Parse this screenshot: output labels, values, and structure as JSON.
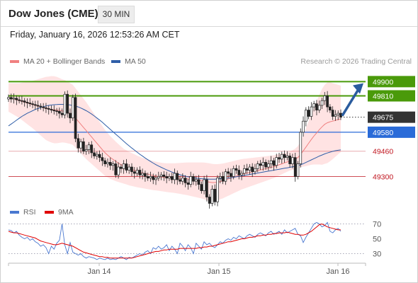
{
  "header": {
    "title": "Dow Jones (CME)",
    "timeframe": "30 MIN"
  },
  "datetime": "Friday, January 16, 2026 12:53:26 AM CET",
  "credit": "Research © 2026 Trading Central",
  "legend": {
    "ma20": {
      "label": "MA 20 + Bollinger Bands",
      "color": "#f08080"
    },
    "ma50": {
      "label": "MA 50",
      "color": "#2f5ea8"
    },
    "rsi": {
      "label": "RSI",
      "color": "#4a78d0"
    },
    "ma9": {
      "label": "9MA",
      "color": "#e00000"
    }
  },
  "colors": {
    "resistance": "#4a9a0a",
    "pivot": "#2a6bd8",
    "current": "#333333",
    "support": "#c0141e",
    "bollinger_fill": "#ffe0e0",
    "candle": "#222222",
    "arrow": "#2a5c9e"
  },
  "chart_data": [
    {
      "type": "candlestick",
      "y_range": [
        49150,
        50000
      ],
      "x_labels": [
        "Jan 14",
        "Jan 15",
        "Jan 16"
      ],
      "levels": [
        {
          "value": 49900,
          "label": "49900",
          "kind": "resistance"
        },
        {
          "value": 49810,
          "label": "49810",
          "kind": "resistance"
        },
        {
          "value": 49675,
          "label": "49675",
          "kind": "current"
        },
        {
          "value": 49580,
          "label": "49580",
          "kind": "pivot"
        },
        {
          "value": 49460,
          "label": "49460",
          "kind": "support"
        },
        {
          "value": 49300,
          "label": "49300",
          "kind": "support"
        }
      ],
      "close": [
        49800,
        49790,
        49795,
        49785,
        49780,
        49778,
        49770,
        49765,
        49760,
        49755,
        49750,
        49745,
        49740,
        49735,
        49730,
        49725,
        49720,
        49715,
        49712,
        49700,
        49690,
        49820,
        49700,
        49670,
        49800,
        49540,
        49480,
        49520,
        49460,
        49470,
        49500,
        49450,
        49430,
        49440,
        49420,
        49400,
        49380,
        49390,
        49370,
        49380,
        49310,
        49360,
        49350,
        49380,
        49340,
        49360,
        49330,
        49320,
        49340,
        49310,
        49320,
        49300,
        49290,
        49300,
        49280,
        49290,
        49300,
        49310,
        49300,
        49290,
        49300,
        49280,
        49320,
        49280,
        49270,
        49290,
        49260,
        49250,
        49300,
        49270,
        49280,
        49250,
        49210,
        49280,
        49170,
        49130,
        49220,
        49140,
        49290,
        49300,
        49270,
        49330,
        49320,
        49300,
        49350,
        49340,
        49310,
        49320,
        49350,
        49340,
        49360,
        49330,
        49350,
        49380,
        49370,
        49390,
        49360,
        49380,
        49400,
        49370,
        49420,
        49410,
        49440,
        49420,
        49430,
        49380,
        49420,
        49300,
        49380,
        49580,
        49650,
        49720,
        49680,
        49740,
        49760,
        49720,
        49750,
        49780,
        49810,
        49740,
        49720,
        49680,
        49690,
        49700,
        49675
      ],
      "ma20": [
        49800,
        49795,
        49790,
        49785,
        49780,
        49775,
        49770,
        49765,
        49760,
        49755,
        49750,
        49745,
        49740,
        49735,
        49730,
        49727,
        49725,
        49722,
        49720,
        49718,
        49715,
        49712,
        49705,
        49698,
        49690,
        49670,
        49650,
        49630,
        49610,
        49590,
        49570,
        49550,
        49530,
        49510,
        49490,
        49470,
        49450,
        49435,
        49420,
        49408,
        49396,
        49385,
        49375,
        49365,
        49358,
        49350,
        49344,
        49338,
        49332,
        49327,
        49322,
        49318,
        49314,
        49310,
        49306,
        49303,
        49300,
        49297,
        49295,
        49293,
        49292,
        49291,
        49290,
        49289,
        49288,
        49287,
        49286,
        49285,
        49283,
        49281,
        49279,
        49277,
        49275,
        49272,
        49268,
        49264,
        49262,
        49262,
        49264,
        49268,
        49272,
        49278,
        49284,
        49290,
        49296,
        49302,
        49308,
        49314,
        49318,
        49322,
        49326,
        49330,
        49334,
        49338,
        49342,
        49346,
        49350,
        49354,
        49358,
        49362,
        49368,
        49374,
        49380,
        49386,
        49392,
        49398,
        49404,
        49410,
        49420,
        49440,
        49462,
        49486,
        49510,
        49534,
        49556,
        49576,
        49596,
        49614,
        49630,
        49640,
        49646,
        49650,
        49655,
        49660,
        49665
      ],
      "ma50": [
        49620,
        49632,
        49644,
        49656,
        49668,
        49680,
        49690,
        49700,
        49708,
        49716,
        49724,
        49730,
        49736,
        49742,
        49746,
        49750,
        49752,
        49754,
        49755,
        49756,
        49756,
        49755,
        49754,
        49752,
        49749,
        49745,
        49740,
        49733,
        49725,
        49716,
        49706,
        49695,
        49683,
        49670,
        49657,
        49643,
        49628,
        49613,
        49598,
        49583,
        49568,
        49553,
        49538,
        49523,
        49508,
        49494,
        49480,
        49467,
        49454,
        49441,
        49429,
        49417,
        49406,
        49395,
        49385,
        49375,
        49366,
        49358,
        49350,
        49342,
        49335,
        49328,
        49322,
        49316,
        49311,
        49306,
        49302,
        49298,
        49295,
        49292,
        49290,
        49288,
        49286,
        49285,
        49284,
        49283,
        49283,
        49283,
        49284,
        49285,
        49286,
        49288,
        49290,
        49292,
        49295,
        49298,
        49301,
        49304,
        49307,
        49310,
        49313,
        49316,
        49319,
        49322,
        49325,
        49328,
        49331,
        49334,
        49337,
        49340,
        49343,
        49346,
        49349,
        49352,
        49355,
        49358,
        49361,
        49364,
        49368,
        49374,
        49381,
        49389,
        49397,
        49405,
        49413,
        49421,
        49429,
        49436,
        49443,
        49449,
        49454,
        49459,
        49463,
        49466,
        49468
      ],
      "band_width": [
        90,
        95,
        100,
        105,
        110,
        118,
        126,
        134,
        142,
        150,
        160,
        170,
        180,
        190,
        200,
        205,
        210,
        212,
        210,
        205,
        200,
        198,
        195,
        192,
        190,
        188,
        186,
        184,
        182,
        180,
        175,
        170,
        165,
        160,
        155,
        150,
        145,
        140,
        135,
        130,
        125,
        120,
        115,
        110,
        108,
        106,
        104,
        102,
        100,
        98,
        96,
        95,
        94,
        93,
        92,
        91,
        90,
        90,
        90,
        91,
        92,
        93,
        94,
        96,
        98,
        100,
        102,
        104,
        106,
        108,
        110,
        112,
        114,
        116,
        118,
        120,
        118,
        116,
        114,
        112,
        110,
        108,
        106,
        104,
        102,
        100,
        98,
        96,
        94,
        92,
        90,
        88,
        86,
        84,
        82,
        80,
        78,
        76,
        74,
        72,
        70,
        68,
        66,
        64,
        62,
        60,
        62,
        66,
        72,
        80,
        100,
        120,
        140,
        160,
        180,
        200,
        220,
        240,
        250,
        255,
        250,
        240,
        230,
        220,
        210
      ]
    },
    {
      "type": "line",
      "y_range": [
        20,
        80
      ],
      "y_ticks": [
        70,
        50,
        30
      ],
      "series": [
        {
          "name": "RSI",
          "values": [
            62,
            61,
            58,
            60,
            55,
            52,
            50,
            52,
            48,
            50,
            46,
            44,
            40,
            42,
            38,
            30,
            40,
            36,
            44,
            48,
            70,
            42,
            30,
            45,
            32,
            30,
            28,
            30,
            26,
            24,
            26,
            25,
            24,
            22,
            24,
            23,
            22,
            24,
            22,
            23,
            22,
            24,
            26,
            24,
            22,
            25,
            24,
            26,
            28,
            30,
            28,
            32,
            34,
            30,
            38,
            36,
            40,
            36,
            38,
            42,
            34,
            40,
            36,
            30,
            44,
            40,
            34,
            42,
            38,
            30,
            44,
            40,
            36,
            46,
            42,
            44,
            40,
            38,
            42,
            46,
            44,
            48,
            50,
            48,
            52,
            50,
            54,
            52,
            50,
            54,
            56,
            54,
            52,
            56,
            58,
            56,
            54,
            58,
            60,
            56,
            58,
            60,
            56,
            62,
            58,
            60,
            62,
            64,
            56,
            54,
            45,
            52,
            58,
            64,
            70,
            72,
            70,
            66,
            68,
            72,
            60,
            58,
            62,
            64,
            60
          ]
        },
        {
          "name": "9MA",
          "values": [
            60,
            59,
            58,
            58,
            57,
            56,
            55,
            54,
            53,
            52,
            51,
            49,
            47,
            46,
            45,
            44,
            43,
            42,
            42,
            43,
            44,
            43,
            42,
            41,
            40,
            38,
            36,
            34,
            32,
            31,
            30,
            29,
            28,
            27,
            26,
            26,
            25,
            25,
            24,
            24,
            24,
            24,
            24,
            24,
            24,
            24,
            24,
            25,
            26,
            27,
            28,
            29,
            30,
            31,
            32,
            33,
            33,
            34,
            35,
            35,
            36,
            36,
            36,
            36,
            37,
            37,
            37,
            37,
            37,
            37,
            37,
            38,
            38,
            39,
            39,
            40,
            40,
            41,
            42,
            43,
            44,
            45,
            46,
            46,
            47,
            48,
            49,
            50,
            50,
            51,
            52,
            52,
            53,
            54,
            54,
            55,
            55,
            56,
            56,
            57,
            57,
            58,
            58,
            58,
            59,
            58,
            57,
            56,
            56,
            55,
            55,
            56,
            58,
            60,
            63,
            66,
            69,
            70,
            68,
            66,
            65,
            64,
            63,
            62,
            62
          ]
        }
      ]
    }
  ]
}
